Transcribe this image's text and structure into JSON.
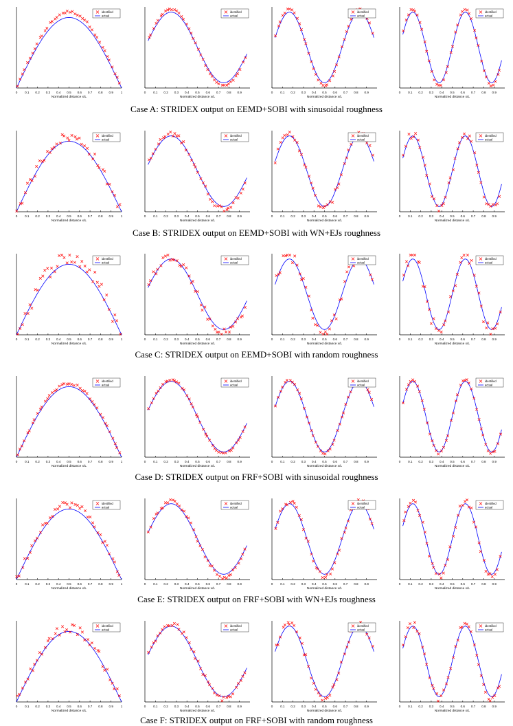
{
  "legend": {
    "identified": "identified",
    "actual": "actual"
  },
  "xlabel": "Normalized distance x/L",
  "colors": {
    "identified": "#ff0000",
    "actual": "#0000ff",
    "axis": "#000000"
  },
  "x_ticks": [
    "0",
    "0.1",
    "0.2",
    "0.3",
    "0.4",
    "0.5",
    "0.6",
    "0.7",
    "0.8",
    "0.9",
    "1"
  ],
  "captions": [
    "Case A: STRIDEX output on EEMD+SOBI with sinusoidal roughness",
    "Case B: STRIDEX output on EEMD+SOBI with WN+EJs roughness",
    "Case C: STRIDEX output on EEMD+SOBI with random roughness",
    "Case D: STRIDEX output on FRF+SOBI with sinusoidal roughness",
    "Case E: STRIDEX output on FRF+SOBI with WN+EJs roughness",
    "Case F: STRIDEX output on FRF+SOBI with random roughness"
  ],
  "chart_data": {
    "type": "scatter",
    "layout": "6 rows x 4 columns of subplots",
    "xlim": [
      0,
      1
    ],
    "x_ticks": [
      0,
      0.1,
      0.2,
      0.3,
      0.4,
      0.5,
      0.6,
      0.7,
      0.8,
      0.9,
      1
    ],
    "series": [
      {
        "name": "identified",
        "style": "red x markers"
      },
      {
        "name": "actual",
        "style": "blue line"
      }
    ],
    "columns": [
      {
        "mode": 1,
        "actual": "sin(1*pi*x/L)",
        "x_range": [
          0,
          1
        ]
      },
      {
        "mode": 2,
        "actual": "sin(2*pi*x/L)",
        "x_range": [
          0.03,
          0.97
        ]
      },
      {
        "mode": 3,
        "actual": "sin(3*pi*x/L)",
        "x_range": [
          0.03,
          0.97
        ]
      },
      {
        "mode": 4,
        "actual": "sin(4*pi*x/L)",
        "x_range": [
          0.03,
          0.97
        ]
      }
    ],
    "rows": [
      {
        "case": "A",
        "method": "EEMD+SOBI",
        "roughness": "sinusoidal"
      },
      {
        "case": "B",
        "method": "EEMD+SOBI",
        "roughness": "WN+EJs"
      },
      {
        "case": "C",
        "method": "EEMD+SOBI",
        "roughness": "random"
      },
      {
        "case": "D",
        "method": "FRF+SOBI",
        "roughness": "sinusoidal"
      },
      {
        "case": "E",
        "method": "FRF+SOBI",
        "roughness": "WN+EJs"
      },
      {
        "case": "F",
        "method": "FRF+SOBI",
        "roughness": "random"
      }
    ]
  }
}
